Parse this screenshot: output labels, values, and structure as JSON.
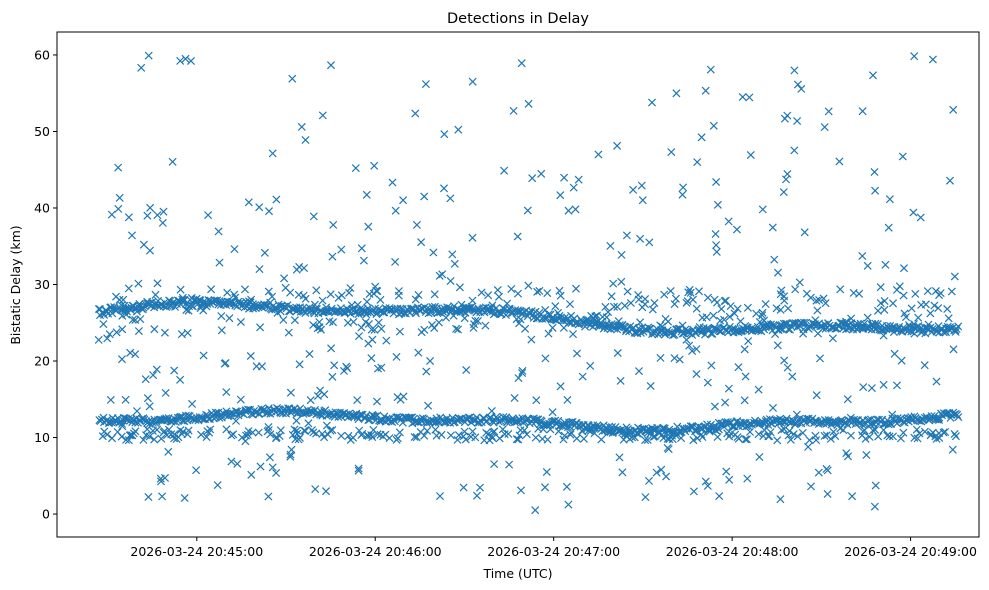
{
  "chart_data": {
    "type": "scatter",
    "title": "Detections in Delay",
    "xlabel": "Time (UTC)",
    "ylabel": "Bistatic Delay (km)",
    "marker": "x",
    "color": "#1f77b4",
    "grid": false,
    "legend": "none",
    "xlim": [
      "2026-03-24 20:44:13",
      "2026-03-24 20:49:23"
    ],
    "ylim": [
      -3,
      63
    ],
    "xticks": [
      "2026-03-24 20:45:00",
      "2026-03-24 20:46:00",
      "2026-03-24 20:47:00",
      "2026-03-24 20:48:00",
      "2026-03-24 20:49:00"
    ],
    "yticks": [
      0,
      10,
      20,
      30,
      40,
      50,
      60
    ],
    "start_time": "2026-03-24 20:44:27",
    "end_time": "2026-03-24 20:49:16",
    "track_ranges": {
      "lower_band_km": [
        9,
        14
      ],
      "upper_band_km": [
        23,
        29
      ]
    }
  }
}
